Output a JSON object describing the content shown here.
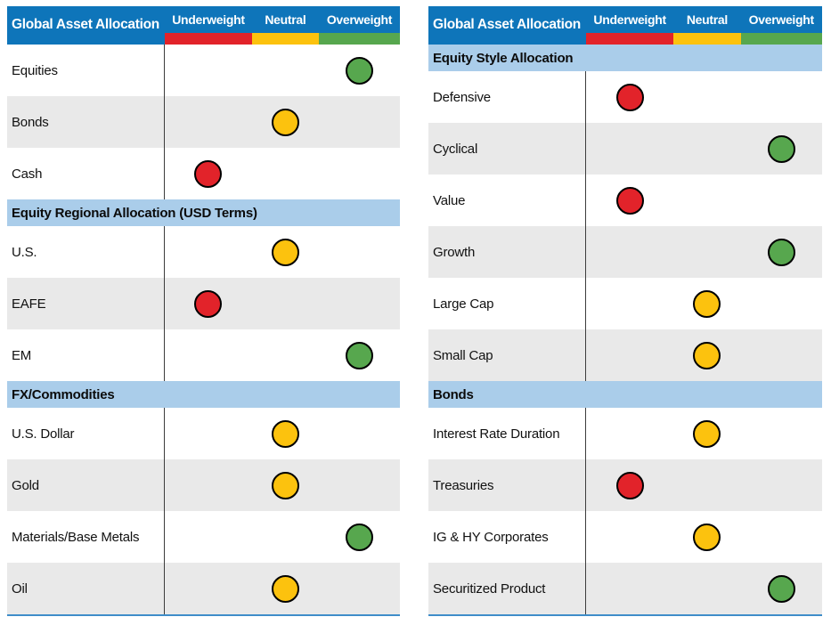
{
  "colors": {
    "header_bg": "#0e75ba",
    "header_text": "#ffffff",
    "section_bg": "#aacdea",
    "row_alt_bg": "#e9e9e9",
    "divider": "#3c3c3c",
    "bottom_border": "#3f8dc9",
    "underweight": "#e2232a",
    "neutral": "#fcc20e",
    "overweight": "#57a74e"
  },
  "columns": [
    {
      "key": "underweight",
      "label": "Underweight",
      "color": "#e2232a"
    },
    {
      "key": "neutral",
      "label": "Neutral",
      "color": "#fcc20e"
    },
    {
      "key": "overweight",
      "label": "Overweight",
      "color": "#57a74e"
    }
  ],
  "tables": [
    {
      "title": "Global Asset Allocation",
      "sections": [
        {
          "header": null,
          "rows": [
            {
              "label": "Equities",
              "rating": "overweight"
            },
            {
              "label": "Bonds",
              "rating": "neutral"
            },
            {
              "label": "Cash",
              "rating": "underweight"
            }
          ]
        },
        {
          "header": "Equity Regional Allocation (USD Terms)",
          "rows": [
            {
              "label": "U.S.",
              "rating": "neutral"
            },
            {
              "label": "EAFE",
              "rating": "underweight"
            },
            {
              "label": "EM",
              "rating": "overweight"
            }
          ]
        },
        {
          "header": "FX/Commodities",
          "rows": [
            {
              "label": "U.S. Dollar",
              "rating": "neutral"
            },
            {
              "label": "Gold",
              "rating": "neutral"
            },
            {
              "label": "Materials/Base Metals",
              "rating": "overweight"
            },
            {
              "label": "Oil",
              "rating": "neutral"
            }
          ]
        }
      ]
    },
    {
      "title": "Global Asset Allocation",
      "sections": [
        {
          "header": "Equity Style Allocation",
          "rows": [
            {
              "label": "Defensive",
              "rating": "underweight"
            },
            {
              "label": "Cyclical",
              "rating": "overweight"
            },
            {
              "label": "Value",
              "rating": "underweight"
            },
            {
              "label": "Growth",
              "rating": "overweight"
            },
            {
              "label": "Large Cap",
              "rating": "neutral"
            },
            {
              "label": "Small Cap",
              "rating": "neutral"
            }
          ]
        },
        {
          "header": "Bonds",
          "rows": [
            {
              "label": "Interest Rate Duration",
              "rating": "neutral"
            },
            {
              "label": "Treasuries",
              "rating": "underweight"
            },
            {
              "label": "IG & HY Corporates",
              "rating": "neutral"
            },
            {
              "label": "Securitized Product",
              "rating": "overweight"
            }
          ]
        }
      ]
    }
  ],
  "chart_data": {
    "type": "table",
    "title": "Global Asset Allocation",
    "columns": [
      "Underweight",
      "Neutral",
      "Overweight"
    ],
    "legend_colors": {
      "Underweight": "#e2232a",
      "Neutral": "#fcc20e",
      "Overweight": "#57a74e"
    },
    "sections": [
      {
        "name": "Global Asset Allocation",
        "rows": [
          {
            "item": "Equities",
            "rating": "Overweight"
          },
          {
            "item": "Bonds",
            "rating": "Neutral"
          },
          {
            "item": "Cash",
            "rating": "Underweight"
          }
        ]
      },
      {
        "name": "Equity Regional Allocation (USD Terms)",
        "rows": [
          {
            "item": "U.S.",
            "rating": "Neutral"
          },
          {
            "item": "EAFE",
            "rating": "Underweight"
          },
          {
            "item": "EM",
            "rating": "Overweight"
          }
        ]
      },
      {
        "name": "FX/Commodities",
        "rows": [
          {
            "item": "U.S. Dollar",
            "rating": "Neutral"
          },
          {
            "item": "Gold",
            "rating": "Neutral"
          },
          {
            "item": "Materials/Base Metals",
            "rating": "Overweight"
          },
          {
            "item": "Oil",
            "rating": "Neutral"
          }
        ]
      },
      {
        "name": "Equity Style Allocation",
        "rows": [
          {
            "item": "Defensive",
            "rating": "Underweight"
          },
          {
            "item": "Cyclical",
            "rating": "Overweight"
          },
          {
            "item": "Value",
            "rating": "Underweight"
          },
          {
            "item": "Growth",
            "rating": "Overweight"
          },
          {
            "item": "Large Cap",
            "rating": "Neutral"
          },
          {
            "item": "Small Cap",
            "rating": "Neutral"
          }
        ]
      },
      {
        "name": "Bonds",
        "rows": [
          {
            "item": "Interest Rate Duration",
            "rating": "Neutral"
          },
          {
            "item": "Treasuries",
            "rating": "Underweight"
          },
          {
            "item": "IG & HY Corporates",
            "rating": "Neutral"
          },
          {
            "item": "Securitized Product",
            "rating": "Overweight"
          }
        ]
      }
    ]
  }
}
